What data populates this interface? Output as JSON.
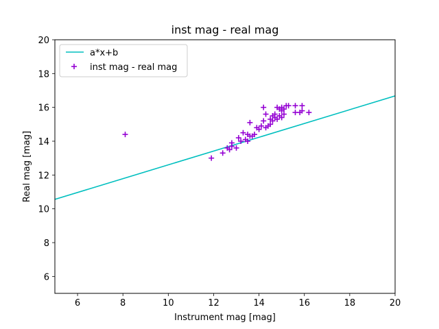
{
  "chart_data": {
    "type": "scatter",
    "title": "inst mag - real mag",
    "xlabel": "Instrument mag [mag]",
    "ylabel": "Real mag [mag]",
    "xlim": [
      5,
      20
    ],
    "ylim": [
      5,
      20
    ],
    "xticks": [
      6,
      8,
      10,
      12,
      14,
      16,
      18,
      20
    ],
    "yticks": [
      6,
      8,
      10,
      12,
      14,
      16,
      18,
      20
    ],
    "grid": false,
    "legend_placement": "upper-left",
    "colors": {
      "line": "#00bfbf",
      "points": "#9400d3"
    },
    "series": [
      {
        "name": "a*x+b",
        "kind": "line",
        "x": [
          5,
          20
        ],
        "y": [
          10.56,
          16.68
        ]
      },
      {
        "name": "inst mag - real mag",
        "kind": "scatter",
        "marker": "plus",
        "x": [
          8.1,
          11.9,
          12.4,
          12.6,
          12.7,
          12.8,
          12.8,
          13.0,
          13.1,
          13.2,
          13.3,
          13.4,
          13.5,
          13.5,
          13.6,
          13.6,
          13.7,
          13.8,
          13.9,
          14.0,
          14.1,
          14.2,
          14.2,
          14.3,
          14.3,
          14.4,
          14.5,
          14.5,
          14.6,
          14.6,
          14.7,
          14.7,
          14.8,
          14.8,
          14.9,
          14.9,
          15.0,
          15.0,
          15.0,
          15.1,
          15.1,
          15.2,
          15.3,
          15.6,
          15.6,
          15.8,
          15.9,
          15.9,
          16.2
        ],
        "y": [
          14.4,
          13.0,
          13.3,
          13.6,
          13.5,
          13.7,
          13.9,
          13.6,
          14.2,
          14.0,
          14.5,
          14.1,
          14.4,
          14.0,
          14.3,
          15.1,
          14.3,
          14.4,
          14.8,
          14.7,
          14.9,
          15.2,
          16.0,
          15.6,
          14.8,
          14.9,
          15.3,
          15.0,
          15.5,
          15.2,
          15.4,
          15.6,
          15.3,
          16.0,
          15.5,
          15.9,
          15.4,
          15.8,
          16.0,
          15.6,
          15.9,
          16.1,
          16.1,
          15.7,
          16.1,
          15.7,
          15.8,
          16.1,
          15.7
        ]
      }
    ]
  }
}
